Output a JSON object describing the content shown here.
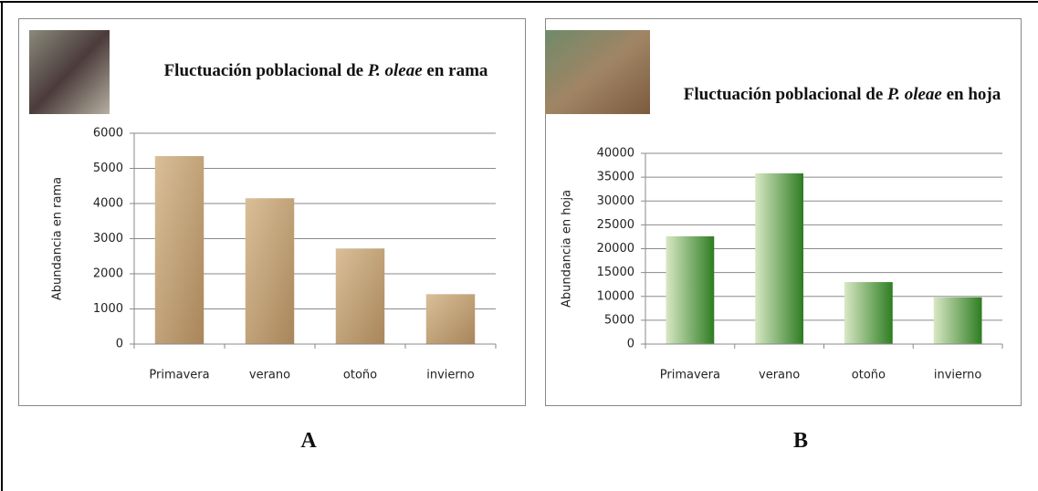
{
  "chart_data": [
    {
      "type": "bar",
      "label": "A",
      "title": [
        "Fluctuación poblacional de ",
        "P. oleae",
        " en rama"
      ],
      "y_label": "Abundancia en rama",
      "categories": [
        "Primavera",
        "verano",
        "otoño",
        "invierno"
      ],
      "values": [
        5350,
        4150,
        2720,
        1420
      ],
      "color": [
        "#d9bf98",
        "#a9855a"
      ],
      "ylim": [
        0,
        6000
      ],
      "yticks": [
        0,
        1000,
        2000,
        3000,
        4000,
        5000,
        6000
      ],
      "grid": true
    },
    {
      "type": "bar",
      "label": "B",
      "title": [
        "Fluctuación poblacional de ",
        "P. oleae",
        " en hoja"
      ],
      "y_label": "Abundancia  en hoja",
      "categories": [
        "Primavera",
        "verano",
        "otoño",
        "invierno"
      ],
      "values": [
        22600,
        35800,
        13000,
        9800
      ],
      "color": [
        "#d8e8c4",
        "#2e7d22"
      ],
      "ylim": [
        0,
        40000
      ],
      "yticks": [
        0,
        5000,
        10000,
        15000,
        20000,
        25000,
        30000,
        35000,
        40000
      ],
      "grid": true
    }
  ]
}
